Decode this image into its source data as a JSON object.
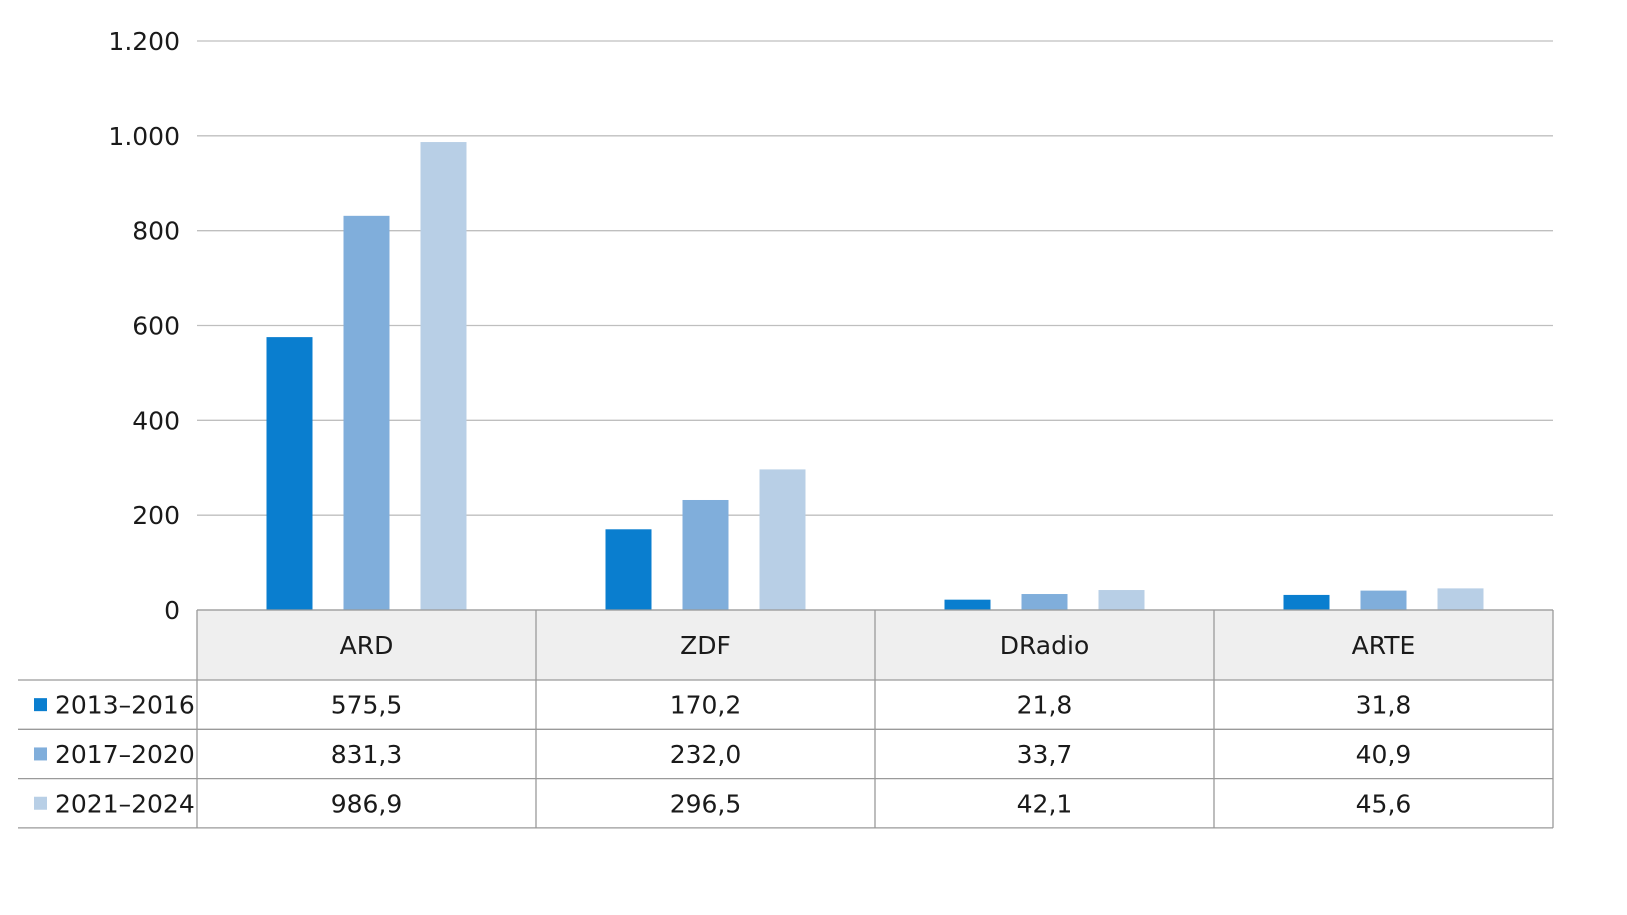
{
  "chart_data": {
    "type": "bar",
    "categories": [
      "ARD",
      "ZDF",
      "DRadio",
      "ARTE"
    ],
    "series": [
      {
        "name": "2013–2016",
        "color": "#0a7ecf",
        "values": [
          575.5,
          170.2,
          21.8,
          31.8
        ],
        "labels": [
          "575,5",
          "170,2",
          "21,8",
          "31,8"
        ]
      },
      {
        "name": "2017–2020",
        "color": "#80aedb",
        "values": [
          831.3,
          232.0,
          33.7,
          40.9
        ],
        "labels": [
          "831,3",
          "232,0",
          "33,7",
          "40,9"
        ]
      },
      {
        "name": "2021–2024",
        "color": "#b8cfe6",
        "values": [
          986.9,
          296.5,
          42.1,
          45.6
        ],
        "labels": [
          "986,9",
          "296,5",
          "42,1",
          "45,6"
        ]
      }
    ],
    "ylim": [
      0,
      1200
    ],
    "yticks": [
      0,
      200,
      400,
      600,
      800,
      1000,
      1200
    ],
    "ytick_labels": [
      "0",
      "200",
      "400",
      "600",
      "800",
      "1.000",
      "1.200"
    ],
    "grid": true,
    "legend": "data-table-below",
    "colors": {
      "gridline": "#bfbfbf",
      "header_bg": "#efefef",
      "table_border": "#9a9a9a"
    }
  }
}
